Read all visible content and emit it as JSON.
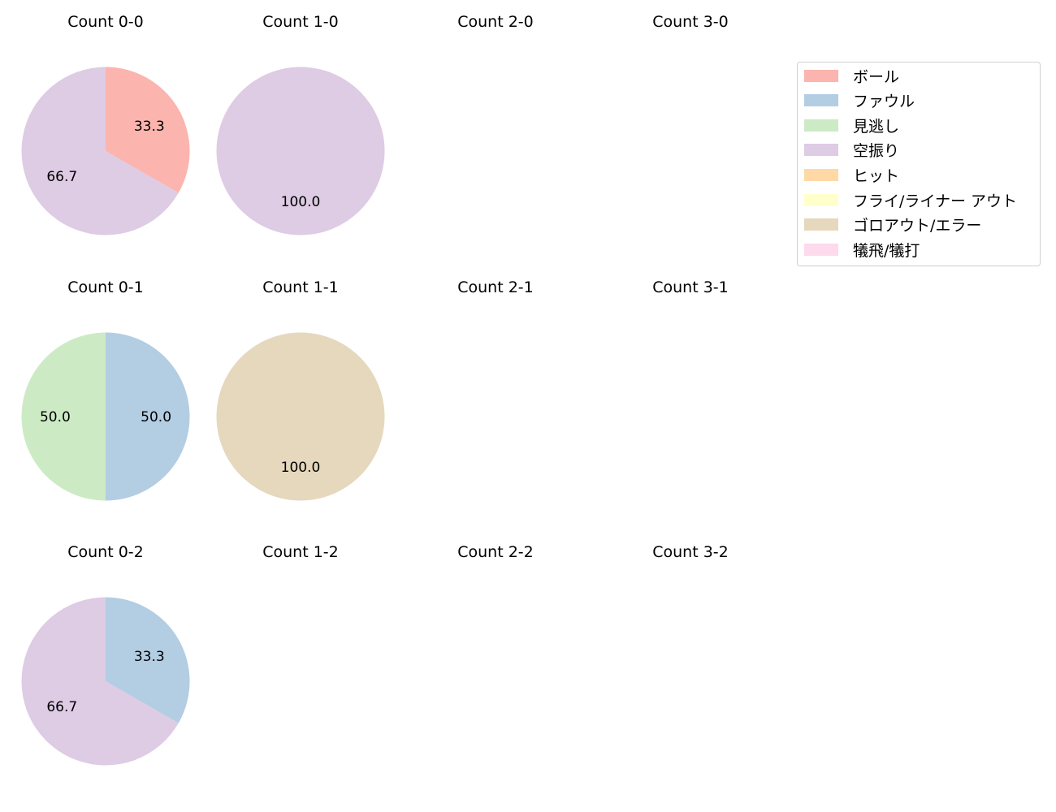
{
  "legend": {
    "items": [
      {
        "label": "ボール",
        "color": "#fbb4ae"
      },
      {
        "label": "ファウル",
        "color": "#b3cde3"
      },
      {
        "label": "見逃し",
        "color": "#ccebc5"
      },
      {
        "label": "空振り",
        "color": "#decbe4"
      },
      {
        "label": "ヒット",
        "color": "#fed9a6"
      },
      {
        "label": "フライ/ライナー アウト",
        "color": "#ffffcc"
      },
      {
        "label": "ゴロアウト/エラー",
        "color": "#e5d8bd"
      },
      {
        "label": "犠飛/犠打",
        "color": "#fddaec"
      }
    ]
  },
  "panels": [
    {
      "title": "Count 0-0"
    },
    {
      "title": "Count 1-0"
    },
    {
      "title": "Count 2-0"
    },
    {
      "title": "Count 3-0"
    },
    {
      "title": "Count 0-1"
    },
    {
      "title": "Count 1-1"
    },
    {
      "title": "Count 2-1"
    },
    {
      "title": "Count 3-1"
    },
    {
      "title": "Count 0-2"
    },
    {
      "title": "Count 1-2"
    },
    {
      "title": "Count 2-2"
    },
    {
      "title": "Count 3-2"
    }
  ],
  "chart_data": [
    {
      "type": "pie",
      "title": "Count 0-0",
      "categories": [
        "ボール",
        "空振り"
      ],
      "values": [
        33.3,
        66.7
      ],
      "colors": [
        "#fbb4ae",
        "#decbe4"
      ]
    },
    {
      "type": "pie",
      "title": "Count 1-0",
      "categories": [
        "空振り"
      ],
      "values": [
        100.0
      ],
      "colors": [
        "#decbe4"
      ]
    },
    {
      "type": "pie",
      "title": "Count 2-0",
      "categories": [],
      "values": []
    },
    {
      "type": "pie",
      "title": "Count 3-0",
      "categories": [],
      "values": []
    },
    {
      "type": "pie",
      "title": "Count 0-1",
      "categories": [
        "ファウル",
        "見逃し"
      ],
      "values": [
        50.0,
        50.0
      ],
      "colors": [
        "#b3cde3",
        "#ccebc5"
      ]
    },
    {
      "type": "pie",
      "title": "Count 1-1",
      "categories": [
        "ゴロアウト/エラー"
      ],
      "values": [
        100.0
      ],
      "colors": [
        "#e5d8bd"
      ]
    },
    {
      "type": "pie",
      "title": "Count 2-1",
      "categories": [],
      "values": []
    },
    {
      "type": "pie",
      "title": "Count 3-1",
      "categories": [],
      "values": []
    },
    {
      "type": "pie",
      "title": "Count 0-2",
      "categories": [
        "ファウル",
        "空振り"
      ],
      "values": [
        33.3,
        66.7
      ],
      "colors": [
        "#b3cde3",
        "#decbe4"
      ]
    },
    {
      "type": "pie",
      "title": "Count 1-2",
      "categories": [],
      "values": []
    },
    {
      "type": "pie",
      "title": "Count 2-2",
      "categories": [],
      "values": []
    },
    {
      "type": "pie",
      "title": "Count 3-2",
      "categories": [],
      "values": []
    }
  ]
}
